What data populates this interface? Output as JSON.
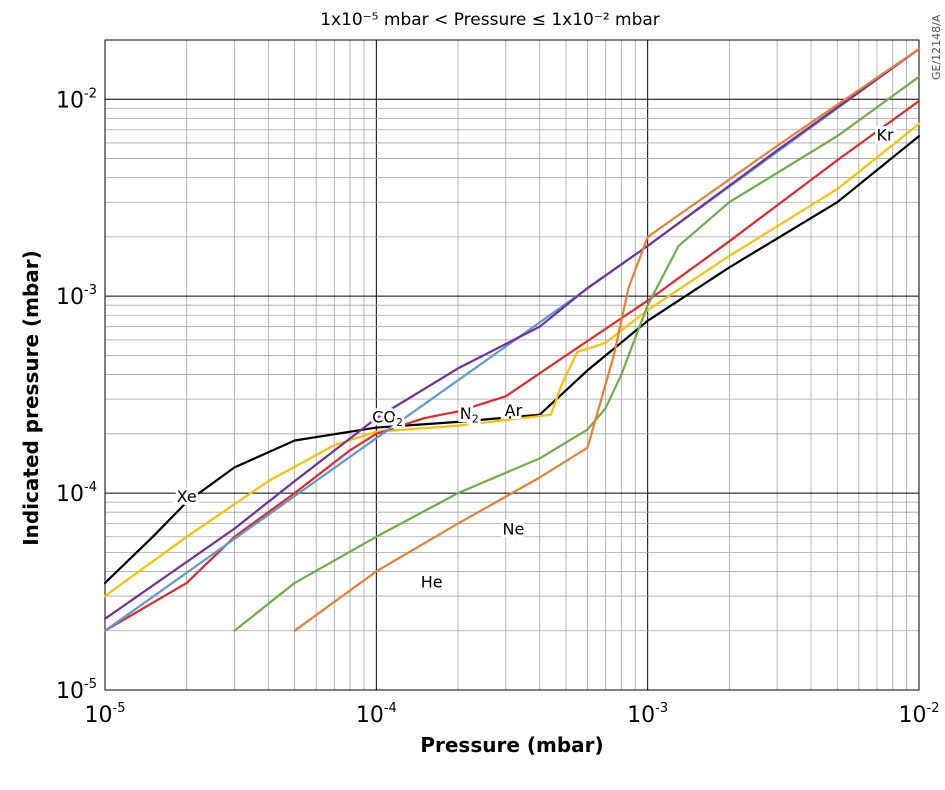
{
  "chart_data": {
    "type": "line",
    "title": "1x10⁻⁵ mbar < Pressure ≤ 1x10⁻² mbar",
    "figure_code": "GE/12148/A",
    "xlabel": "Pressure (mbar)",
    "ylabel": "Indicated pressure (mbar)",
    "x_scale": "log",
    "y_scale": "log",
    "xlim": [
      1e-05,
      0.01
    ],
    "ylim": [
      1e-05,
      0.02
    ],
    "grid": true,
    "legend": "inline labels",
    "x_ticks": [
      {
        "base": "10",
        "exp": "-5"
      },
      {
        "base": "10",
        "exp": "-4"
      },
      {
        "base": "10",
        "exp": "-3"
      },
      {
        "base": "10",
        "exp": "-2"
      }
    ],
    "y_ticks": [
      {
        "base": "10",
        "exp": "-5",
        "value": 1e-05
      },
      {
        "base": "10",
        "exp": "-4",
        "value": 0.0001
      },
      {
        "base": "10",
        "exp": "-3",
        "value": 0.001
      },
      {
        "base": "10",
        "exp": "-2",
        "value": 0.01
      }
    ],
    "series": [
      {
        "name": "Xe",
        "color": "#000000",
        "points": [
          [
            1e-05,
            3.5e-05
          ],
          [
            1.5e-05,
            6e-05
          ],
          [
            2e-05,
            9e-05
          ],
          [
            3e-05,
            0.000135
          ],
          [
            5e-05,
            0.000185
          ],
          [
            0.0001,
            0.000215
          ],
          [
            0.0002,
            0.00023
          ],
          [
            0.0004,
            0.00025
          ],
          [
            0.0006,
            0.00042
          ],
          [
            0.001,
            0.00075
          ],
          [
            0.002,
            0.0014
          ],
          [
            0.005,
            0.003
          ],
          [
            0.01,
            0.0065
          ]
        ]
      },
      {
        "name": "Kr",
        "color": "#ffc000",
        "points": [
          [
            1e-05,
            3e-05
          ],
          [
            2e-05,
            6e-05
          ],
          [
            4e-05,
            0.000115
          ],
          [
            7e-05,
            0.000175
          ],
          [
            0.0001,
            0.000205
          ],
          [
            0.0002,
            0.00022
          ],
          [
            0.00044,
            0.00025
          ],
          [
            0.00048,
            0.00035
          ],
          [
            0.00055,
            0.00052
          ],
          [
            0.0007,
            0.00058
          ],
          [
            0.001,
            0.00085
          ],
          [
            0.002,
            0.0016
          ],
          [
            0.005,
            0.0035
          ],
          [
            0.01,
            0.0075
          ]
        ]
      },
      {
        "name": "Ar",
        "color": "#e8262a",
        "points": [
          [
            1e-05,
            2e-05
          ],
          [
            2e-05,
            3.5e-05
          ],
          [
            3e-05,
            6e-05
          ],
          [
            5e-05,
            0.0001
          ],
          [
            8e-05,
            0.000165
          ],
          [
            0.0001,
            0.0002
          ],
          [
            0.00015,
            0.00024
          ],
          [
            0.0002,
            0.00026
          ],
          [
            0.0003,
            0.00031
          ],
          [
            0.0005,
            0.0005
          ],
          [
            0.001,
            0.00095
          ],
          [
            0.002,
            0.0019
          ],
          [
            0.005,
            0.0049
          ],
          [
            0.01,
            0.0098
          ]
        ]
      },
      {
        "name": "N2",
        "color": "#5b9bd5",
        "points": [
          [
            1e-05,
            2e-05
          ],
          [
            0.0001,
            0.00019
          ],
          [
            0.001,
            0.0018
          ],
          [
            0.01,
            0.018
          ]
        ]
      },
      {
        "name": "CO2",
        "color": "#7030a0",
        "points": [
          [
            1e-05,
            2.3e-05
          ],
          [
            3e-05,
            6.6e-05
          ],
          [
            5e-05,
            0.000115
          ],
          [
            0.0001,
            0.00024
          ],
          [
            0.0002,
            0.00043
          ],
          [
            0.0004,
            0.0007
          ],
          [
            0.0006,
            0.0011
          ],
          [
            0.001,
            0.0018
          ],
          [
            0.003,
            0.0055
          ],
          [
            0.01,
            0.018
          ]
        ]
      },
      {
        "name": "Ne",
        "color": "#70ad47",
        "points": [
          [
            3e-05,
            2e-05
          ],
          [
            5e-05,
            3.5e-05
          ],
          [
            0.0001,
            6e-05
          ],
          [
            0.0002,
            0.0001
          ],
          [
            0.0004,
            0.00015
          ],
          [
            0.0006,
            0.00021
          ],
          [
            0.0007,
            0.00027
          ],
          [
            0.0008,
            0.0004
          ],
          [
            0.001,
            0.0009
          ],
          [
            0.0013,
            0.0018
          ],
          [
            0.002,
            0.003
          ],
          [
            0.005,
            0.0065
          ],
          [
            0.01,
            0.013
          ]
        ]
      },
      {
        "name": "He",
        "color": "#ed7d31",
        "points": [
          [
            5e-05,
            2e-05
          ],
          [
            0.0001,
            4e-05
          ],
          [
            0.0002,
            7e-05
          ],
          [
            0.0004,
            0.00012
          ],
          [
            0.0006,
            0.00017
          ],
          [
            0.00065,
            0.00025
          ],
          [
            0.00075,
            0.0005
          ],
          [
            0.00085,
            0.0011
          ],
          [
            0.001,
            0.002
          ],
          [
            0.003,
            0.0058
          ],
          [
            0.01,
            0.018
          ]
        ]
      }
    ],
    "annotations": [
      {
        "text": "Xe",
        "x": 2e-05,
        "y": 9.5e-05
      },
      {
        "text": "Kr",
        "x": 0.0075,
        "y": 0.0065
      },
      {
        "text": "Ar",
        "x": 0.00032,
        "y": 0.00026
      },
      {
        "text": "N",
        "sub": "2",
        "x": 0.00022,
        "y": 0.00025
      },
      {
        "text": "CO",
        "sub": "2",
        "x": 0.00011,
        "y": 0.00024
      },
      {
        "text": "Ne",
        "x": 0.00032,
        "y": 6.5e-05
      },
      {
        "text": "He",
        "x": 0.00016,
        "y": 3.5e-05
      }
    ]
  }
}
